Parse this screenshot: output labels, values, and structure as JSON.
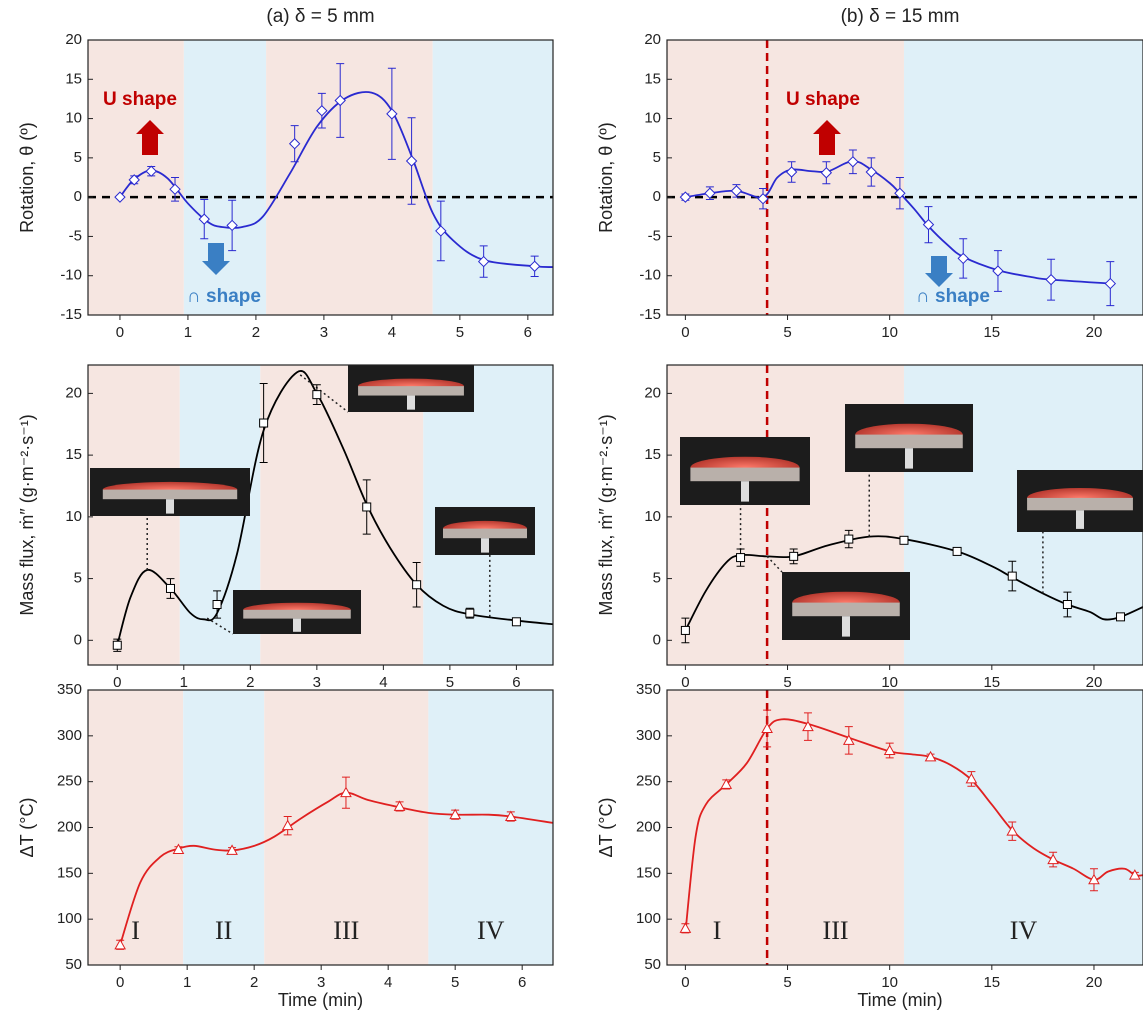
{
  "chart_data": [
    {
      "type": "line",
      "title": "(a) δ = 5 mm",
      "y_label": "Rotation, θ (º)",
      "xlim": [
        -0.47,
        6.37
      ],
      "xticks": [
        0,
        1,
        2,
        3,
        4,
        5,
        6
      ],
      "ylim": [
        -15,
        20
      ],
      "yticks": [
        -15,
        -10,
        -5,
        0,
        5,
        10,
        15,
        20
      ],
      "shading": [
        {
          "from": -0.47,
          "to": 0.94,
          "color": "#f6e6e1"
        },
        {
          "from": 0.94,
          "to": 2.15,
          "color": "#dff0f8"
        },
        {
          "from": 2.15,
          "to": 4.6,
          "color": "#f6e6e1"
        },
        {
          "from": 4.6,
          "to": 6.37,
          "color": "#dff0f8"
        }
      ],
      "ref_lines": [
        {
          "axis": "y",
          "value": 0,
          "color": "#000000"
        }
      ],
      "annotations": [
        {
          "text": "U shape",
          "color": "#c00000"
        },
        {
          "text": "∩ shape",
          "color": "#3a7fc4"
        }
      ],
      "series": [
        {
          "color": "#2a2ad0",
          "x": [
            0,
            0.2,
            0.45,
            0.7,
            1.0,
            1.3,
            1.5,
            1.8,
            2.1,
            2.5,
            2.9,
            3.3,
            3.7,
            4.0,
            4.3,
            4.6,
            4.9,
            5.35,
            6.1,
            6.37
          ],
          "values": [
            0,
            2.2,
            3.4,
            2.4,
            -0.8,
            -3.2,
            -3.8,
            -3.8,
            -2.5,
            3,
            9,
            12.5,
            13.3,
            11,
            5,
            -2,
            -5.5,
            -8,
            -8.8,
            -8.9
          ]
        },
        {
          "color": "#2a2ad0",
          "marker": "diamond",
          "x": [
            0,
            0.21,
            0.46,
            0.81,
            1.24,
            1.65,
            2.57,
            2.97,
            3.24,
            4.0,
            4.29,
            4.72,
            5.35,
            6.1
          ],
          "values": [
            0,
            2.2,
            3.3,
            1.0,
            -2.8,
            -3.6,
            6.8,
            11.0,
            12.3,
            10.6,
            4.6,
            -4.3,
            -8.2,
            -8.8
          ],
          "errors": [
            0,
            0.5,
            0.6,
            1.5,
            2.5,
            3.2,
            2.3,
            2.2,
            4.7,
            5.8,
            5.5,
            3.8,
            2.0,
            1.3
          ]
        }
      ]
    },
    {
      "type": "line",
      "title": "(b) δ = 15 mm",
      "y_label": "Rotation, θ (º)",
      "xlim": [
        -0.9,
        22.4
      ],
      "xticks": [
        0,
        5,
        10,
        15,
        20
      ],
      "ylim": [
        -15,
        20
      ],
      "yticks": [
        -15,
        -10,
        -5,
        0,
        5,
        10,
        15,
        20
      ],
      "shading": [
        {
          "from": -0.9,
          "to": 10.7,
          "color": "#f6e6e1"
        },
        {
          "from": 10.7,
          "to": 22.4,
          "color": "#dff0f8"
        }
      ],
      "ref_lines": [
        {
          "axis": "y",
          "value": 0,
          "color": "#000000"
        },
        {
          "axis": "x",
          "value": 4,
          "color": "#c00000"
        }
      ],
      "annotations": [
        {
          "text": "U shape",
          "color": "#c00000"
        },
        {
          "text": "∩ shape",
          "color": "#3a7fc4"
        }
      ],
      "series": [
        {
          "color": "#2a2ad0",
          "x": [
            0,
            1.2,
            2.5,
            3.8,
            4.5,
            5.2,
            6.2,
            7,
            8.2,
            9.1,
            10,
            10.5,
            11.2,
            11.9,
            12.8,
            13.6,
            15.3,
            17,
            17.9,
            20.8
          ],
          "values": [
            0,
            0.5,
            0.8,
            0,
            2.5,
            3.5,
            3.3,
            3.3,
            4.6,
            3.5,
            1.8,
            0.5,
            -1.5,
            -3.7,
            -6,
            -7.6,
            -9.3,
            -10.2,
            -10.5,
            -11
          ]
        },
        {
          "color": "#2a2ad0",
          "marker": "diamond",
          "x": [
            0,
            1.2,
            2.5,
            3.8,
            5.2,
            6.9,
            8.2,
            9.1,
            10.5,
            11.9,
            13.6,
            15.3,
            17.9,
            20.8
          ],
          "values": [
            0,
            0.5,
            0.8,
            -0.2,
            3.2,
            3.1,
            4.5,
            3.2,
            0.5,
            -3.5,
            -7.8,
            -9.4,
            -10.5,
            -11
          ],
          "errors": [
            0.4,
            0.8,
            0.8,
            1.3,
            1.3,
            1.4,
            1.5,
            1.8,
            2,
            2.3,
            2.5,
            2.6,
            2.6,
            2.8
          ]
        }
      ]
    },
    {
      "type": "line",
      "y_label": "Mass flux, ṁ″ (g·m⁻²·s⁻¹)",
      "xlim": [
        -0.44,
        6.55
      ],
      "xticks": [
        0,
        1,
        2,
        3,
        4,
        5,
        6
      ],
      "ylim": [
        -2,
        22.3
      ],
      "yticks": [
        0,
        5,
        10,
        15,
        20
      ],
      "shading": [
        {
          "from": -0.44,
          "to": 0.94,
          "color": "#f6e6e1"
        },
        {
          "from": 0.94,
          "to": 2.15,
          "color": "#dff0f8"
        },
        {
          "from": 2.15,
          "to": 4.6,
          "color": "#f6e6e1"
        },
        {
          "from": 4.6,
          "to": 6.55,
          "color": "#dff0f8"
        }
      ],
      "series": [
        {
          "color": "#000000",
          "x": [
            0,
            0.2,
            0.45,
            0.8,
            1.1,
            1.3,
            1.5,
            1.8,
            2.2,
            2.7,
            3.0,
            3.4,
            3.75,
            4.1,
            4.5,
            4.9,
            5.3,
            6.0,
            6.55
          ],
          "values": [
            -0.4,
            3.5,
            5.7,
            4.2,
            2.2,
            1.7,
            2.2,
            7,
            17,
            21.7,
            20,
            15.5,
            11,
            7.5,
            4.5,
            2.8,
            2.1,
            1.6,
            1.3
          ]
        },
        {
          "color": "#000000",
          "marker": "square",
          "x": [
            0,
            0.8,
            1.5,
            2.2,
            3.0,
            3.75,
            4.5,
            5.3,
            6.0
          ],
          "values": [
            -0.4,
            4.2,
            2.9,
            17.6,
            19.9,
            10.8,
            4.5,
            2.2,
            1.5
          ],
          "errors": [
            0.5,
            0.8,
            1.1,
            3.2,
            0.8,
            2.2,
            1.8,
            0.4,
            0.2
          ]
        }
      ]
    },
    {
      "type": "line",
      "y_label": "Mass flux, ṁ″ (g·m⁻²·s⁻¹)",
      "xlim": [
        -0.9,
        22.4
      ],
      "xticks": [
        0,
        5,
        10,
        15,
        20
      ],
      "ylim": [
        -2,
        22.3
      ],
      "yticks": [
        0,
        5,
        10,
        15,
        20
      ],
      "shading": [
        {
          "from": -0.9,
          "to": 10.7,
          "color": "#f6e6e1"
        },
        {
          "from": 10.7,
          "to": 22.4,
          "color": "#dff0f8"
        }
      ],
      "ref_lines": [
        {
          "axis": "x",
          "value": 4,
          "color": "#c00000"
        }
      ],
      "series": [
        {
          "color": "#000000",
          "x": [
            0,
            1,
            2,
            2.7,
            4,
            5.3,
            7,
            9,
            10.7,
            13.3,
            15,
            16,
            17.5,
            18.7,
            19.8,
            20.5,
            21.3,
            22.4
          ],
          "values": [
            0.8,
            4,
            6.3,
            6.9,
            6.8,
            6.8,
            7.7,
            8.4,
            8.2,
            7.2,
            6,
            5.1,
            3.8,
            2.9,
            2.3,
            1.7,
            1.9,
            2.7
          ]
        },
        {
          "color": "#000000",
          "marker": "square",
          "x": [
            0,
            2.7,
            5.3,
            8,
            10.7,
            13.3,
            16,
            18.7,
            21.3
          ],
          "values": [
            0.8,
            6.7,
            6.8,
            8.2,
            8.1,
            7.2,
            5.2,
            2.9,
            1.9
          ],
          "errors": [
            1,
            0.7,
            0.6,
            0.7,
            0.3,
            0.2,
            1.2,
            1,
            0.2
          ]
        }
      ]
    },
    {
      "type": "line",
      "y_label": "ΔT (°C)",
      "x_label": "Time (min)",
      "xlim": [
        -0.48,
        6.46
      ],
      "xticks": [
        0,
        1,
        2,
        3,
        4,
        5,
        6
      ],
      "ylim": [
        50,
        350
      ],
      "yticks": [
        50,
        100,
        150,
        200,
        250,
        300,
        350
      ],
      "shading": [
        {
          "from": -0.48,
          "to": 0.94,
          "color": "#f6e6e1",
          "label": "I"
        },
        {
          "from": 0.94,
          "to": 2.15,
          "color": "#dff0f8",
          "label": "II"
        },
        {
          "from": 2.15,
          "to": 4.6,
          "color": "#f6e6e1",
          "label": "III"
        },
        {
          "from": 4.6,
          "to": 6.46,
          "color": "#dff0f8",
          "label": "IV"
        }
      ],
      "series": [
        {
          "color": "#e02020",
          "x": [
            0,
            0.3,
            0.6,
            0.87,
            1.1,
            1.4,
            1.67,
            2.0,
            2.3,
            2.7,
            3.1,
            3.37,
            3.7,
            4.17,
            4.6,
            5.0,
            5.5,
            5.83,
            6.46
          ],
          "values": [
            72,
            140,
            168,
            177,
            180,
            176,
            175,
            180,
            190,
            210,
            228,
            238,
            230,
            222,
            216,
            214,
            214,
            212,
            205
          ]
        },
        {
          "color": "#e02020",
          "marker": "triangle",
          "x": [
            0,
            0.87,
            1.67,
            2.5,
            3.37,
            4.17,
            5.0,
            5.83
          ],
          "values": [
            72,
            176,
            175,
            202,
            238,
            223,
            214,
            212
          ],
          "errors": [
            5,
            3,
            3,
            10,
            17,
            5,
            5,
            5
          ]
        }
      ]
    },
    {
      "type": "line",
      "y_label": "ΔT (°C)",
      "x_label": "Time (min)",
      "xlim": [
        -0.9,
        22.4
      ],
      "xticks": [
        0,
        5,
        10,
        15,
        20
      ],
      "ylim": [
        50,
        350
      ],
      "yticks": [
        50,
        100,
        150,
        200,
        250,
        300,
        350
      ],
      "shading": [
        {
          "from": -0.9,
          "to": 4,
          "color": "#f6e6e1",
          "label": "I"
        },
        {
          "from": 4,
          "to": 10.7,
          "color": "#f6e6e1",
          "label": "III"
        },
        {
          "from": 10.7,
          "to": 22.4,
          "color": "#dff0f8",
          "label": "IV"
        }
      ],
      "ref_lines": [
        {
          "axis": "x",
          "value": 4,
          "color": "#c00000"
        }
      ],
      "series": [
        {
          "color": "#e02020",
          "x": [
            0,
            0.5,
            1,
            2,
            3,
            4,
            4.7,
            6,
            8,
            10,
            11,
            12,
            13,
            14,
            15,
            16,
            17,
            18,
            19,
            20,
            20.7,
            21.5,
            22,
            22.4
          ],
          "values": [
            85,
            190,
            225,
            247,
            270,
            308,
            318,
            313,
            298,
            283,
            280,
            277,
            268,
            252,
            225,
            197,
            178,
            165,
            155,
            143,
            152,
            155,
            148,
            148
          ]
        },
        {
          "color": "#e02020",
          "marker": "triangle",
          "x": [
            0,
            2,
            4,
            6,
            8,
            10,
            12,
            14,
            16,
            18,
            20,
            22
          ],
          "values": [
            90,
            247,
            308,
            310,
            295,
            284,
            277,
            253,
            196,
            165,
            143,
            148
          ],
          "errors": [
            5,
            5,
            20,
            15,
            15,
            8,
            3,
            8,
            10,
            8,
            12,
            3
          ]
        }
      ]
    }
  ]
}
